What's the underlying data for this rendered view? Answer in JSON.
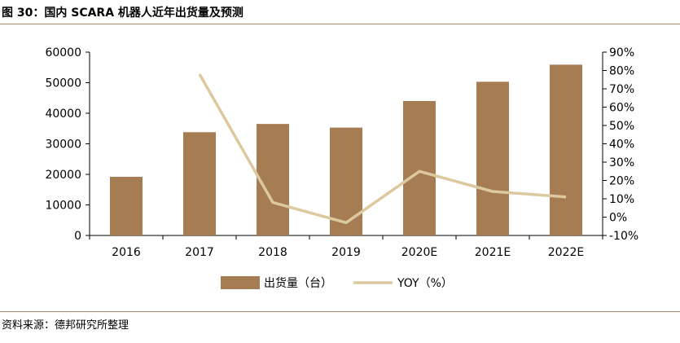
{
  "header": {
    "title": "图 30：国内 SCARA 机器人近年出货量及预测"
  },
  "footer": {
    "source": "资料来源：德邦研究所整理"
  },
  "colors": {
    "bar": "#a67c52",
    "line": "#dcc9a0",
    "axis": "#000000",
    "rule": "#b28a63"
  },
  "chart_data": {
    "type": "bar",
    "categories": [
      "2016",
      "2017",
      "2018",
      "2019",
      "2020E",
      "2021E",
      "2022E"
    ],
    "series": [
      {
        "name": "出货量（台）",
        "type": "bar",
        "axis": "left",
        "values": [
          19200,
          33800,
          36500,
          35300,
          44000,
          50300,
          55900
        ]
      },
      {
        "name": "YOY（%）",
        "type": "line",
        "axis": "right",
        "values": [
          null,
          78,
          8,
          -3,
          25,
          14,
          11
        ]
      }
    ],
    "y_left": {
      "ylim": [
        0,
        60000
      ],
      "ticks": [
        "0",
        "10000",
        "20000",
        "30000",
        "40000",
        "50000",
        "60000"
      ]
    },
    "y_right": {
      "ylim": [
        -10,
        90
      ],
      "ticks": [
        "-10%",
        "0%",
        "10%",
        "20%",
        "30%",
        "40%",
        "50%",
        "60%",
        "70%",
        "80%",
        "90%"
      ]
    },
    "grid": false,
    "legend": "bottom"
  }
}
